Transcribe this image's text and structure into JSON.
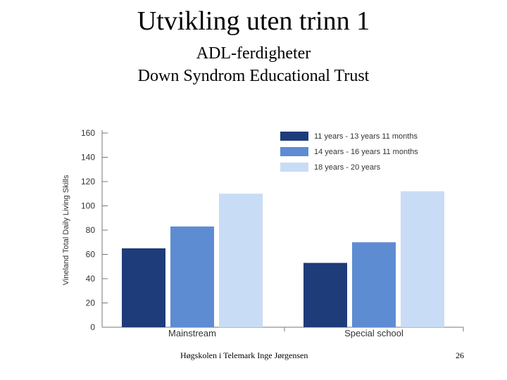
{
  "slide": {
    "title": "Utvikling uten trinn 1",
    "subtitle1": "ADL-ferdigheter",
    "subtitle2": "Down Syndrom Educational Trust",
    "footer_text": "Høgskolen i Telemark Inge Jørgensen",
    "page_number": "26"
  },
  "chart_data": {
    "type": "bar",
    "categories": [
      "Mainstream",
      "Special school"
    ],
    "series": [
      {
        "name": "11 years - 13 years 11 months",
        "values": [
          65,
          53
        ],
        "color": "#1f3c7a"
      },
      {
        "name": "14 years - 16 years 11 months",
        "values": [
          83,
          70
        ],
        "color": "#5e8cd2"
      },
      {
        "name": "18 years - 20 years",
        "values": [
          110,
          112
        ],
        "color": "#c9dcf5"
      }
    ],
    "ylabel": "Vineland Total Daily Living Skills",
    "ylim": [
      0,
      160
    ],
    "yticks": [
      0,
      20,
      40,
      60,
      80,
      100,
      120,
      140,
      160
    ],
    "legend_position": "top-right"
  }
}
